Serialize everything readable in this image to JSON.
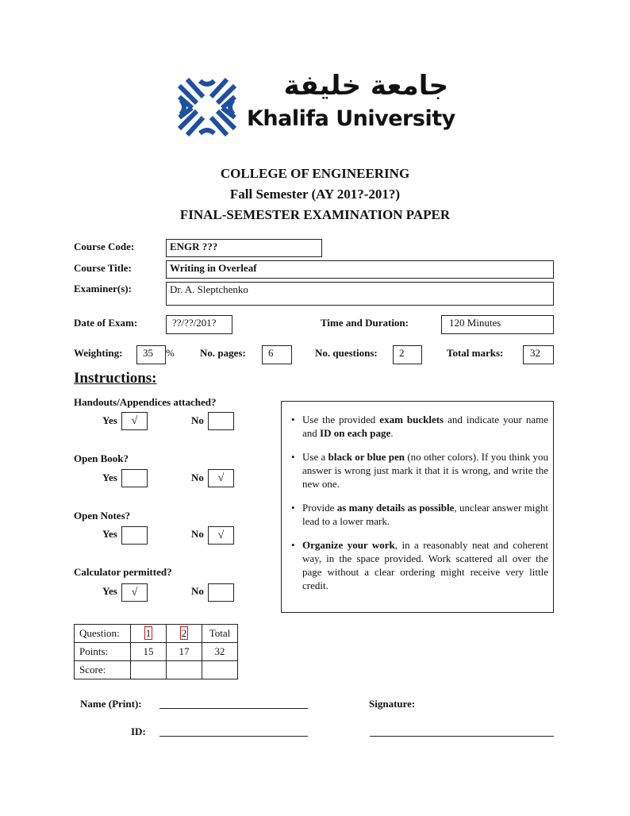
{
  "logo": {
    "arabic": "جامعة خليفة",
    "name": "Khalifa University",
    "brand_color": "#1f4fa0"
  },
  "header": {
    "college": "COLLEGE OF ENGINEERING",
    "semester": "Fall Semester (AY 201?-201?)",
    "paper": "FINAL-SEMESTER EXAMINATION PAPER"
  },
  "course": {
    "code_label": "Course Code:",
    "code": "ENGR ???",
    "title_label": "Course Title:",
    "title": "Writing in Overleaf",
    "examiner_label": "Examiner(s):",
    "examiner": "Dr. A. Sleptchenko",
    "date_label": "Date of Exam:",
    "date": "??/??/201?",
    "duration_label": "Time and Duration:",
    "duration": "120 Minutes",
    "weighting_label": "Weighting:",
    "weighting": "35",
    "percent": "%",
    "pages_label": "No. pages:",
    "pages": "6",
    "questions_label": "No. questions:",
    "questions": "2",
    "marks_label": "Total marks:",
    "marks": "32"
  },
  "instructions": {
    "heading": "Instructions:",
    "yes": "Yes",
    "no": "No",
    "check": "√",
    "questions": [
      {
        "label": "Handouts/Appendices attached?",
        "yes": true,
        "no": false
      },
      {
        "label": "Open Book?",
        "yes": false,
        "no": true
      },
      {
        "label": "Open Notes?",
        "yes": false,
        "no": true
      },
      {
        "label": "Calculator permitted?",
        "yes": true,
        "no": false
      }
    ],
    "bullets": [
      {
        "t1": "Use the provided ",
        "b": "exam bucklets",
        "t2": " and indicate your name and ",
        "b2": "ID on each page",
        "t3": "."
      },
      {
        "t1": "Use a ",
        "b": "black or blue pen",
        "t2": " (no other colors). If you think you answer is wrong just mark it that it is wrong, and write the new one.",
        "b2": "",
        "t3": ""
      },
      {
        "t1": "Provide ",
        "b": "as many details as possible",
        "t2": ", unclear answer might lead to a lower mark.",
        "b2": "",
        "t3": ""
      },
      {
        "t1": "",
        "b": "Organize your work",
        "t2": ", in a reasonably neat and coherent way, in the space provided. Work scattered all over the page without a clear ordering might receive very little credit.",
        "b2": "",
        "t3": ""
      }
    ]
  },
  "grade_table": {
    "row_labels": [
      "Question:",
      "Points:",
      "Score:"
    ],
    "questions": [
      "1",
      "2"
    ],
    "total_label": "Total",
    "points": [
      "15",
      "17",
      "32"
    ]
  },
  "signature": {
    "name_label": "Name (Print):",
    "signature_label": "Signature:",
    "id_label": "ID:"
  }
}
